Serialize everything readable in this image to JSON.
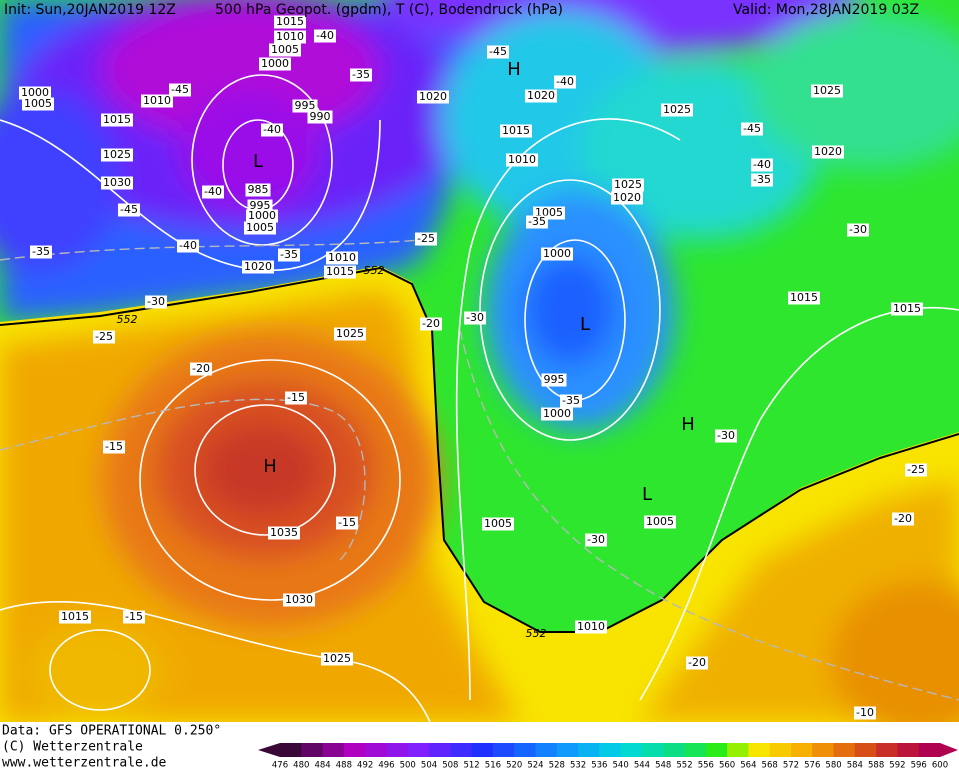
{
  "header": {
    "init": "Init: Sun,20JAN2019 12Z",
    "product": "500 hPa Geopot. (gpdm), T (C), Bodendruck (hPa)",
    "valid": "Valid: Mon,28JAN2019 03Z"
  },
  "pressure_labels": [
    "1015",
    "1010",
    "1005",
    "1000",
    "1000",
    "1005",
    "1010",
    "1015",
    "1025",
    "1030",
    "995",
    "990",
    "985",
    "995",
    "1000",
    "1005",
    "1020",
    "1010",
    "1015",
    "1020",
    "1020",
    "1015",
    "1010",
    "1005",
    "1000",
    "995",
    "1000",
    "1025",
    "1025",
    "1020",
    "1025",
    "1020",
    "1015",
    "1015",
    "1025",
    "1035",
    "1030",
    "1025",
    "1015",
    "1005",
    "1005",
    "1010"
  ],
  "temperature_labels": [
    "-40",
    "-45",
    "-45",
    "-35",
    "-40",
    "-40",
    "-45",
    "-40",
    "-35",
    "-40",
    "-45",
    "-35",
    "-25",
    "-40",
    "-35",
    "-35",
    "-30",
    "-30",
    "-25",
    "-20",
    "-30",
    "-20",
    "-15",
    "-35",
    "-30",
    "-15",
    "-15",
    "-25",
    "-20",
    "-30",
    "-15",
    "-20",
    "-10"
  ],
  "height_labels": [
    "552",
    "552",
    "552"
  ],
  "pressure_systems": [
    "H",
    "H",
    "H",
    "L",
    "L",
    "L"
  ],
  "footer": {
    "data": "Data: GFS OPERATIONAL 0.250°",
    "copyright": "(C) Wetterzentrale",
    "url": "www.wetterzentrale.de"
  },
  "colorbar": {
    "ticks": [
      476,
      480,
      484,
      488,
      492,
      496,
      500,
      504,
      508,
      512,
      516,
      520,
      524,
      528,
      532,
      536,
      540,
      544,
      548,
      552,
      556,
      560,
      564,
      568,
      572,
      576,
      580,
      584,
      588,
      592,
      596,
      600
    ]
  }
}
